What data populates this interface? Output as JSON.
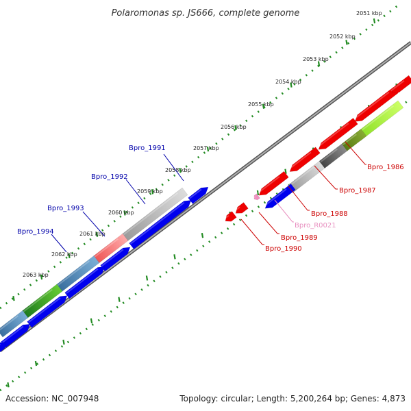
{
  "title": "Polaromonas sp. JS666, complete genome",
  "accession": "Accession: NC_007948",
  "summary": "Topology: circular; Length: 5,200,264 bp; Genes: 4,873",
  "ticks": [
    "2051 kbp",
    "2052 kbp",
    "2053 kbp",
    "2054 kbp",
    "2055 kbp",
    "2056 kbp",
    "2057 kbp",
    "2058 kbp",
    "2059 kbp",
    "2060 kbp",
    "2061 kbp",
    "2062 kbp",
    "2063 kbp"
  ],
  "gene_labels": {
    "forward": [
      "Bpro_1991",
      "Bpro_1992",
      "Bpro_1993",
      "Bpro_1994"
    ],
    "reverse": [
      "Bpro_1986",
      "Bpro_1987",
      "Bpro_1988",
      "Bpro_R0021",
      "Bpro_1989",
      "Bpro_1990"
    ]
  },
  "colors": {
    "forward_cds": "#0000ee",
    "reverse_cds": "#ee0000",
    "rna": "#f090c0",
    "backbone": "#808080",
    "tick_marks": "#228b22",
    "forward_label": "#0000aa",
    "reverse_label": "#cc0000",
    "rna_label": "#e890c0"
  }
}
